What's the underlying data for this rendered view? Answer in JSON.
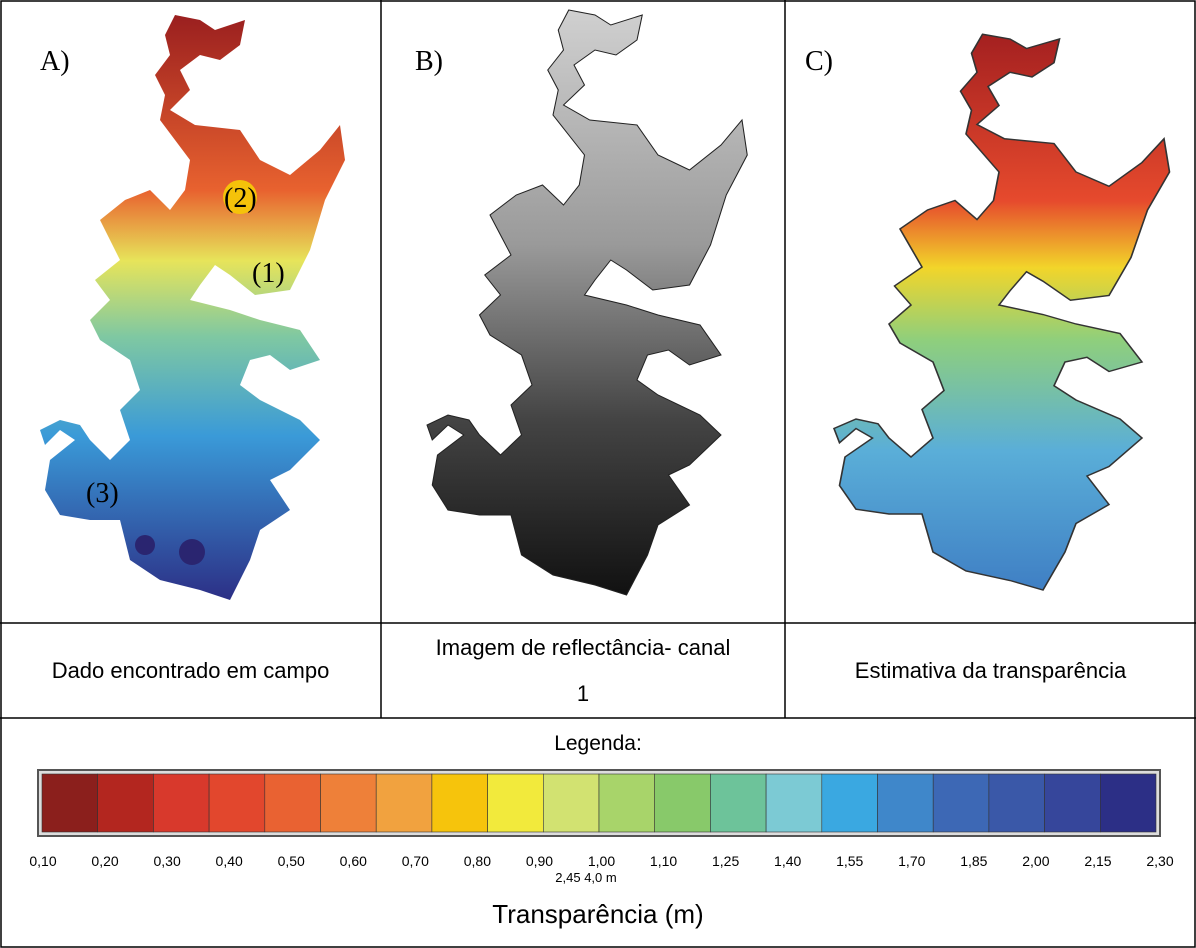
{
  "panels": [
    {
      "label": "A)",
      "caption": "Dado encontrado em campo",
      "points": [
        "(1)",
        "(2)",
        "(3)"
      ]
    },
    {
      "label": "B)",
      "caption": "Imagem de reflectância- canal 1"
    },
    {
      "label": "C)",
      "caption": "Estimativa da transparência"
    }
  ],
  "legend": {
    "title": "Legenda:",
    "colors": [
      "#8b1f1c",
      "#b3261f",
      "#d8392c",
      "#e2472d",
      "#e96232",
      "#ee8039",
      "#f1a23f",
      "#f6c40c",
      "#f2ea3c",
      "#d2e271",
      "#a8d46a",
      "#88c96a",
      "#6dc39a",
      "#7ccad4",
      "#3aa8e1",
      "#3f87ca",
      "#3d68b5",
      "#3a58a8",
      "#36469b",
      "#2c2f86"
    ],
    "ticks": [
      "0,10",
      "0,20",
      "0,30",
      "0,40",
      "0,50",
      "0,60",
      "0,70",
      "0,80",
      "0,90",
      "1,00",
      "1,10",
      "1,25",
      "1,40",
      "1,55",
      "1,70",
      "1,85",
      "2,00",
      "2,15",
      "2,30"
    ],
    "extra": "2,45  4,0 m",
    "axis_title": "Transparência (m)"
  }
}
